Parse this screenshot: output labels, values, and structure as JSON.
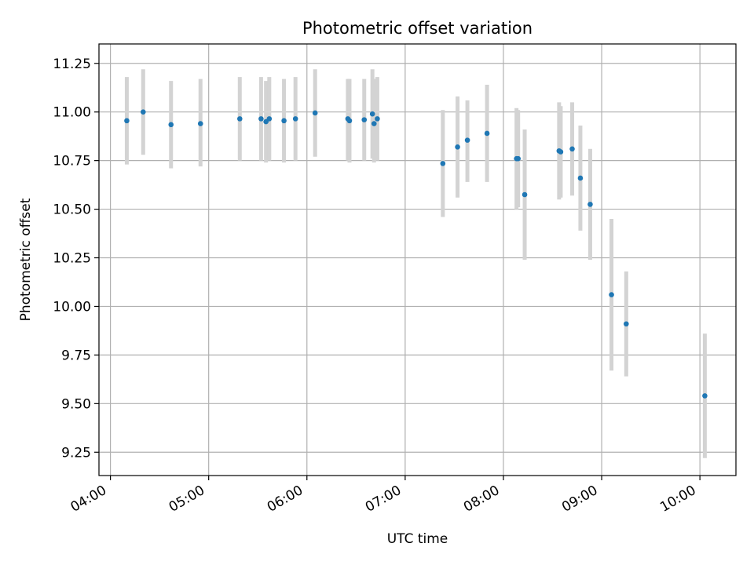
{
  "chart_data": {
    "type": "scatter",
    "title": "Photometric offset variation",
    "xlabel": "UTC time",
    "ylabel": "Photometric offset",
    "xlim": [
      "03:53",
      "10:22"
    ],
    "ylim": [
      9.13,
      11.35
    ],
    "x_ticks": [
      "04:00",
      "05:00",
      "06:00",
      "07:00",
      "08:00",
      "09:00",
      "10:00"
    ],
    "y_ticks": [
      "9.25",
      "9.50",
      "9.75",
      "10.00",
      "10.25",
      "10.50",
      "10.75",
      "11.00",
      "11.25"
    ],
    "grid": true,
    "point_color": "#1f77b4",
    "errorbar_color": "#d3d3d3",
    "points": [
      {
        "time": "04:10",
        "y": 10.955,
        "low": 10.73,
        "high": 11.18
      },
      {
        "time": "04:20",
        "y": 11.0,
        "low": 10.78,
        "high": 11.22
      },
      {
        "time": "04:37",
        "y": 10.935,
        "low": 10.71,
        "high": 11.16
      },
      {
        "time": "04:55",
        "y": 10.94,
        "low": 10.72,
        "high": 11.17
      },
      {
        "time": "05:19",
        "y": 10.965,
        "low": 10.75,
        "high": 11.18
      },
      {
        "time": "05:32",
        "y": 10.965,
        "low": 10.75,
        "high": 11.18
      },
      {
        "time": "05:35",
        "y": 10.95,
        "low": 10.74,
        "high": 11.16
      },
      {
        "time": "05:37",
        "y": 10.965,
        "low": 10.75,
        "high": 11.18
      },
      {
        "time": "05:46",
        "y": 10.955,
        "low": 10.74,
        "high": 11.17
      },
      {
        "time": "05:53",
        "y": 10.965,
        "low": 10.75,
        "high": 11.18
      },
      {
        "time": "06:05",
        "y": 10.995,
        "low": 10.77,
        "high": 11.22
      },
      {
        "time": "06:25",
        "y": 10.965,
        "low": 10.75,
        "high": 11.17
      },
      {
        "time": "06:26",
        "y": 10.955,
        "low": 10.74,
        "high": 11.17
      },
      {
        "time": "06:35",
        "y": 10.96,
        "low": 10.75,
        "high": 11.17
      },
      {
        "time": "06:40",
        "y": 10.99,
        "low": 10.76,
        "high": 11.22
      },
      {
        "time": "06:41",
        "y": 10.94,
        "low": 10.74,
        "high": 11.17
      },
      {
        "time": "06:43",
        "y": 10.965,
        "low": 10.75,
        "high": 11.18
      },
      {
        "time": "07:23",
        "y": 10.735,
        "low": 10.46,
        "high": 11.01
      },
      {
        "time": "07:32",
        "y": 10.82,
        "low": 10.56,
        "high": 11.08
      },
      {
        "time": "07:38",
        "y": 10.855,
        "low": 10.64,
        "high": 11.06
      },
      {
        "time": "07:50",
        "y": 10.89,
        "low": 10.64,
        "high": 11.14
      },
      {
        "time": "08:08",
        "y": 10.76,
        "low": 10.5,
        "high": 11.02
      },
      {
        "time": "08:09",
        "y": 10.76,
        "low": 10.51,
        "high": 11.01
      },
      {
        "time": "08:13",
        "y": 10.575,
        "low": 10.24,
        "high": 10.91
      },
      {
        "time": "08:34",
        "y": 10.8,
        "low": 10.55,
        "high": 11.05
      },
      {
        "time": "08:35",
        "y": 10.795,
        "low": 10.56,
        "high": 11.03
      },
      {
        "time": "08:42",
        "y": 10.81,
        "low": 10.57,
        "high": 11.05
      },
      {
        "time": "08:47",
        "y": 10.66,
        "low": 10.39,
        "high": 10.93
      },
      {
        "time": "08:53",
        "y": 10.525,
        "low": 10.24,
        "high": 10.81
      },
      {
        "time": "09:06",
        "y": 10.06,
        "low": 9.67,
        "high": 10.45
      },
      {
        "time": "09:15",
        "y": 9.91,
        "low": 9.64,
        "high": 10.18
      },
      {
        "time": "10:03",
        "y": 9.54,
        "low": 9.22,
        "high": 9.86
      }
    ]
  }
}
